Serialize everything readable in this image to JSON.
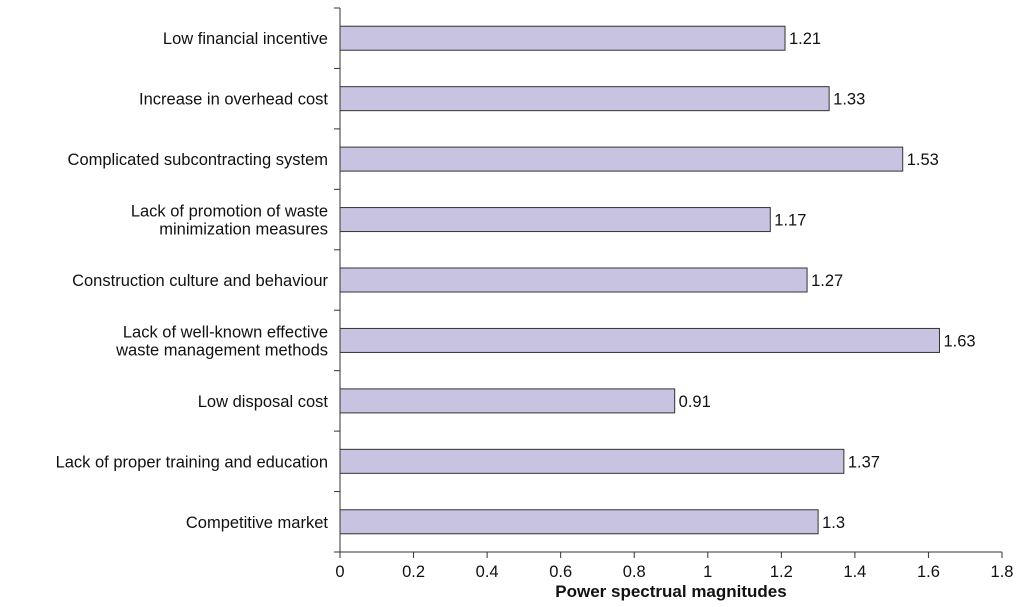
{
  "chart_data": {
    "type": "bar",
    "orientation": "horizontal",
    "categories": [
      [
        "Low financial incentive"
      ],
      [
        "Increase in overhead cost"
      ],
      [
        "Complicated subcontracting system"
      ],
      [
        "Lack of promotion of waste",
        "minimization measures"
      ],
      [
        "Construction culture and behaviour"
      ],
      [
        "Lack of well-known effective",
        "waste management methods"
      ],
      [
        "Low disposal cost"
      ],
      [
        "Lack of proper training and education"
      ],
      [
        "Competitive market"
      ]
    ],
    "values": [
      1.21,
      1.33,
      1.53,
      1.17,
      1.27,
      1.63,
      0.91,
      1.37,
      1.3
    ],
    "value_labels": [
      "1.21",
      "1.33",
      "1.53",
      "1.17",
      "1.27",
      "1.63",
      "0.91",
      "1.37",
      "1.3"
    ],
    "xlabel": "Power spectrual magnitudes",
    "xlim": [
      0,
      1.8
    ],
    "xticks": [
      0,
      0.2,
      0.4,
      0.6,
      0.8,
      1,
      1.2,
      1.4,
      1.6,
      1.8
    ],
    "xtick_labels": [
      "0",
      "0.2",
      "0.4",
      "0.6",
      "0.8",
      "1",
      "1.2",
      "1.4",
      "1.6",
      "1.8"
    ],
    "grid": false,
    "legend": "none",
    "bar_color": "#c8c3e1",
    "bar_edge_color": "#333333"
  }
}
